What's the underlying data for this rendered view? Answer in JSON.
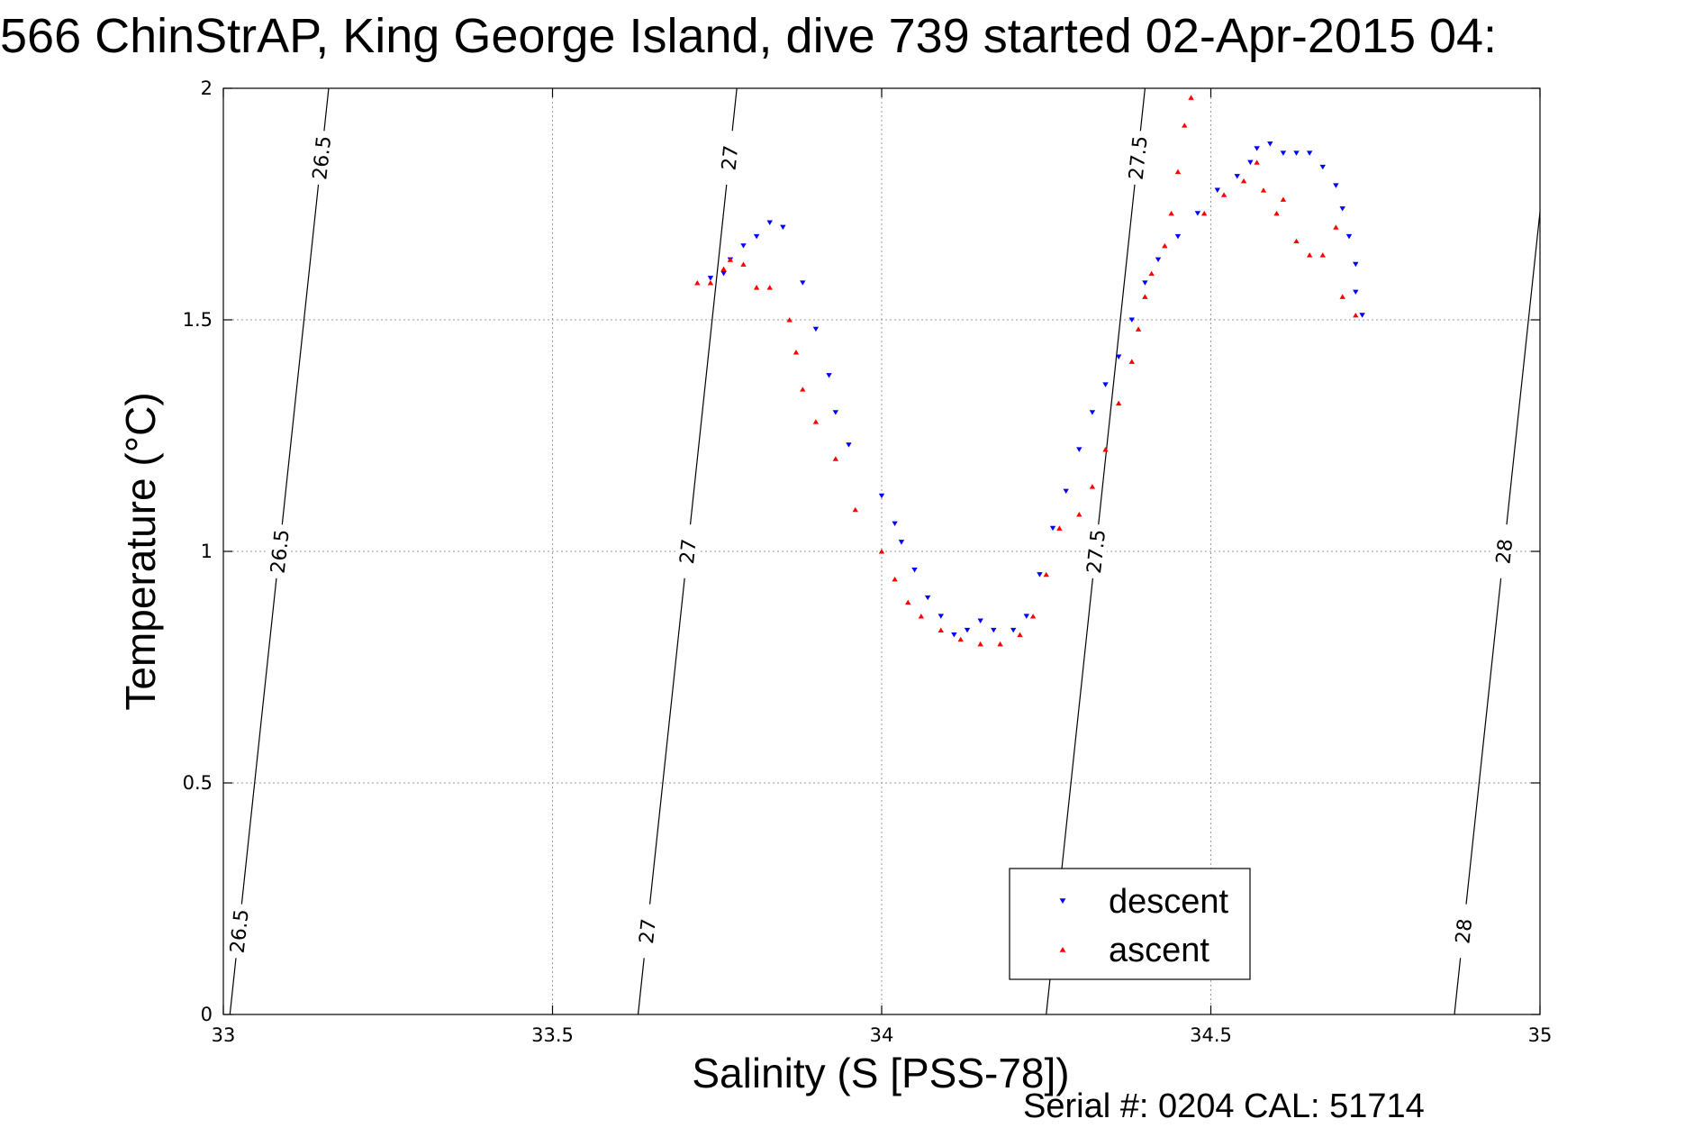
{
  "chart_data": {
    "type": "scatter",
    "title": "566 ChinStrAP, King George Island, dive 739 started 02-Apr-2015 04:",
    "xlabel": "Salinity (S [PSS-78])",
    "ylabel": "Temperature (°C)",
    "xlim": [
      33,
      35
    ],
    "ylim": [
      0,
      2
    ],
    "xticks": [
      "33",
      "33.5",
      "34",
      "34.5",
      "35"
    ],
    "yticks": [
      "0",
      "0.5",
      "1",
      "1.5",
      "2"
    ],
    "grid": true,
    "legend_position": "bottom-center",
    "footer": "Serial #: 0204  CAL: 51714",
    "density_contours": [
      {
        "label": "26.5",
        "points": [
          [
            33.01,
            0.0
          ],
          [
            33.16,
            2.0
          ]
        ]
      },
      {
        "label": "27",
        "points": [
          [
            33.63,
            0.0
          ],
          [
            33.78,
            2.0
          ]
        ]
      },
      {
        "label": "27.5",
        "points": [
          [
            34.25,
            0.0
          ],
          [
            34.4,
            2.0
          ]
        ]
      },
      {
        "label": "28",
        "points": [
          [
            34.87,
            0.0
          ],
          [
            35.02,
            2.0
          ]
        ]
      }
    ],
    "series": [
      {
        "name": "descent",
        "color": "#0000ff",
        "marker": "down-triangle",
        "points": [
          [
            33.74,
            1.59
          ],
          [
            33.76,
            1.6
          ],
          [
            33.77,
            1.63
          ],
          [
            33.79,
            1.66
          ],
          [
            33.81,
            1.68
          ],
          [
            33.83,
            1.71
          ],
          [
            33.85,
            1.7
          ],
          [
            33.88,
            1.58
          ],
          [
            33.9,
            1.48
          ],
          [
            33.92,
            1.38
          ],
          [
            33.93,
            1.3
          ],
          [
            33.95,
            1.23
          ],
          [
            34.0,
            1.12
          ],
          [
            34.02,
            1.06
          ],
          [
            34.03,
            1.02
          ],
          [
            34.05,
            0.96
          ],
          [
            34.07,
            0.9
          ],
          [
            34.09,
            0.86
          ],
          [
            34.11,
            0.82
          ],
          [
            34.13,
            0.83
          ],
          [
            34.15,
            0.85
          ],
          [
            34.17,
            0.83
          ],
          [
            34.2,
            0.83
          ],
          [
            34.22,
            0.86
          ],
          [
            34.24,
            0.95
          ],
          [
            34.26,
            1.05
          ],
          [
            34.28,
            1.13
          ],
          [
            34.3,
            1.22
          ],
          [
            34.32,
            1.3
          ],
          [
            34.34,
            1.36
          ],
          [
            34.36,
            1.42
          ],
          [
            34.38,
            1.5
          ],
          [
            34.4,
            1.58
          ],
          [
            34.42,
            1.63
          ],
          [
            34.45,
            1.68
          ],
          [
            34.48,
            1.73
          ],
          [
            34.51,
            1.78
          ],
          [
            34.54,
            1.81
          ],
          [
            34.56,
            1.84
          ],
          [
            34.57,
            1.87
          ],
          [
            34.59,
            1.88
          ],
          [
            34.61,
            1.86
          ],
          [
            34.63,
            1.86
          ],
          [
            34.65,
            1.86
          ],
          [
            34.67,
            1.83
          ],
          [
            34.69,
            1.79
          ],
          [
            34.7,
            1.74
          ],
          [
            34.71,
            1.68
          ],
          [
            34.72,
            1.62
          ],
          [
            34.72,
            1.56
          ],
          [
            34.73,
            1.51
          ]
        ]
      },
      {
        "name": "ascent",
        "color": "#ff0000",
        "marker": "up-triangle",
        "points": [
          [
            33.72,
            1.58
          ],
          [
            33.74,
            1.58
          ],
          [
            33.76,
            1.61
          ],
          [
            33.77,
            1.63
          ],
          [
            33.79,
            1.62
          ],
          [
            33.81,
            1.57
          ],
          [
            33.83,
            1.57
          ],
          [
            33.86,
            1.5
          ],
          [
            33.87,
            1.43
          ],
          [
            33.88,
            1.35
          ],
          [
            33.9,
            1.28
          ],
          [
            33.93,
            1.2
          ],
          [
            33.96,
            1.09
          ],
          [
            34.0,
            1.0
          ],
          [
            34.02,
            0.94
          ],
          [
            34.04,
            0.89
          ],
          [
            34.06,
            0.86
          ],
          [
            34.09,
            0.83
          ],
          [
            34.12,
            0.81
          ],
          [
            34.15,
            0.8
          ],
          [
            34.18,
            0.8
          ],
          [
            34.21,
            0.82
          ],
          [
            34.23,
            0.86
          ],
          [
            34.25,
            0.95
          ],
          [
            34.27,
            1.05
          ],
          [
            34.3,
            1.08
          ],
          [
            34.32,
            1.14
          ],
          [
            34.34,
            1.22
          ],
          [
            34.36,
            1.32
          ],
          [
            34.38,
            1.41
          ],
          [
            34.39,
            1.48
          ],
          [
            34.4,
            1.55
          ],
          [
            34.41,
            1.6
          ],
          [
            34.43,
            1.66
          ],
          [
            34.44,
            1.73
          ],
          [
            34.45,
            1.82
          ],
          [
            34.46,
            1.92
          ],
          [
            34.47,
            1.98
          ],
          [
            34.49,
            1.73
          ],
          [
            34.52,
            1.77
          ],
          [
            34.55,
            1.8
          ],
          [
            34.57,
            1.84
          ],
          [
            34.58,
            1.78
          ],
          [
            34.6,
            1.73
          ],
          [
            34.61,
            1.76
          ],
          [
            34.63,
            1.67
          ],
          [
            34.65,
            1.64
          ],
          [
            34.67,
            1.64
          ],
          [
            34.69,
            1.7
          ],
          [
            34.7,
            1.55
          ],
          [
            34.72,
            1.51
          ]
        ]
      }
    ]
  }
}
